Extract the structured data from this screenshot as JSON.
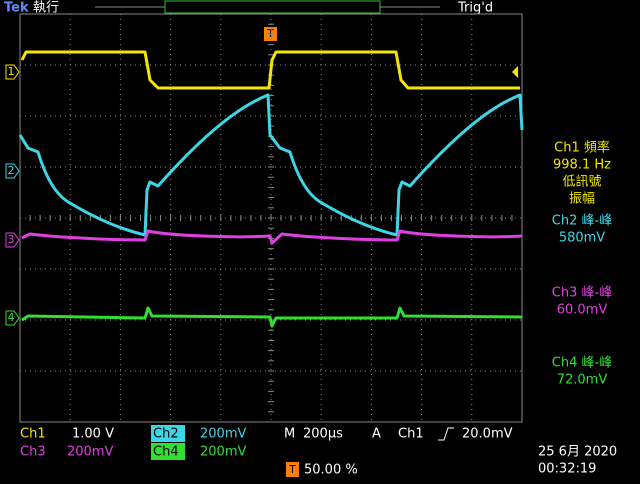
{
  "header": {
    "brand": "Tek",
    "mode": "執行",
    "trigger_status": "Trig'd",
    "trigger_marker": "T"
  },
  "channel_markers": [
    "1",
    "2",
    "3",
    "4"
  ],
  "measurements": [
    {
      "lines": [
        "Ch1 頻率",
        "998.1 Hz",
        "低訊號",
        "振幅"
      ]
    },
    {
      "lines": [
        "Ch2 峰-峰",
        "580mV"
      ]
    },
    {
      "lines": [
        "Ch3 峰-峰",
        "60.0mV"
      ]
    },
    {
      "lines": [
        "Ch4 峰-峰",
        "72.0mV"
      ]
    }
  ],
  "settings": {
    "ch1": {
      "label": "Ch1",
      "scale": "1.00 V"
    },
    "ch2": {
      "label": "Ch2",
      "scale": "200mV"
    },
    "ch3": {
      "label": "Ch3",
      "scale": "200mV"
    },
    "ch4": {
      "label": "Ch4",
      "scale": "200mV"
    },
    "timebase": {
      "label": "M",
      "scale": "200µs"
    },
    "trigger": {
      "label": "A",
      "source": "Ch1",
      "level": "20.0mV"
    },
    "trigger_position": {
      "label": "T",
      "value": "50.00 %"
    }
  },
  "footer": {
    "date": "25 6月  2020",
    "time": "00:32:19"
  }
}
